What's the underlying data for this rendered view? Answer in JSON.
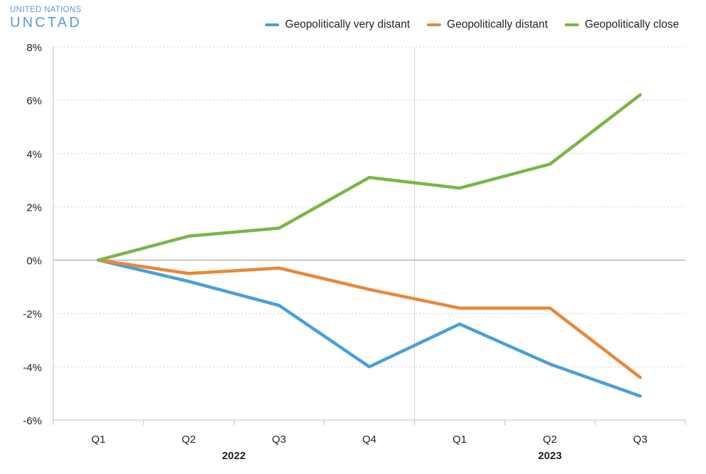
{
  "logo": {
    "top": "UNITED NATIONS",
    "bottom": "UNCTAD"
  },
  "chart_data": {
    "type": "line",
    "categories": [
      "Q1",
      "Q2",
      "Q3",
      "Q4",
      "Q1",
      "Q2",
      "Q3"
    ],
    "years": [
      {
        "label": "2022",
        "quarters": [
          "Q1",
          "Q2",
          "Q3",
          "Q4"
        ]
      },
      {
        "label": "2023",
        "quarters": [
          "Q1",
          "Q2",
          "Q3"
        ]
      }
    ],
    "series": [
      {
        "name": "Geopolitically very distant",
        "color": "#4a9fd8",
        "values": [
          0,
          -0.8,
          -1.7,
          -4.0,
          -2.4,
          -3.9,
          -5.1
        ]
      },
      {
        "name": "Geopolitically distant",
        "color": "#e8883a",
        "values": [
          0,
          -0.5,
          -0.3,
          -1.1,
          -1.8,
          -1.8,
          -4.4
        ]
      },
      {
        "name": "Geopolitically close",
        "color": "#7ab648",
        "values": [
          0,
          0.9,
          1.2,
          3.1,
          2.7,
          3.6,
          6.2
        ]
      }
    ],
    "ylim": [
      -6,
      8
    ],
    "yticks": [
      "8%",
      "6%",
      "4%",
      "2%",
      "0%",
      "-2%",
      "-4%",
      "-6%"
    ],
    "ytick_values": [
      8,
      6,
      4,
      2,
      0,
      -2,
      -4,
      -6
    ],
    "grid": "dotted horizontal",
    "legend_position": "top-right",
    "title": "",
    "xlabel": "",
    "ylabel": ""
  }
}
